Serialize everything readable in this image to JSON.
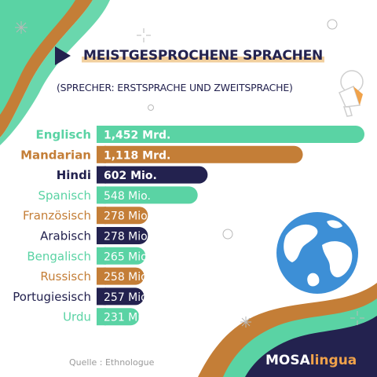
{
  "brand": {
    "part1": "MOSA",
    "part2": "lingua"
  },
  "chart_data": {
    "type": "bar",
    "orientation": "horizontal",
    "title": "MEISTGESPROCHENE SPRACHEN",
    "subtitle": "(SPRECHER: ERSTSPRACHE UND ZWEITSPRACHE)",
    "source": "Quelle : Ethnologue",
    "unit": "millions of speakers",
    "categories": [
      "Englisch",
      "Mandarian",
      "Hindi",
      "Spanisch",
      "Französisch",
      "Arabisch",
      "Bengalisch",
      "Russisch",
      "Portugiesisch",
      "Urdu"
    ],
    "values": [
      1452,
      1118,
      602,
      548,
      278,
      278,
      265,
      258,
      257,
      231
    ],
    "value_labels": [
      "1,452 Mrd.",
      "1,118 Mrd.",
      "602 Mio.",
      "548 Mio.",
      "278 Mio.",
      "278 Mio.",
      "265 Mio.",
      "258 Mio",
      "257 Mio.",
      "231 Mio."
    ],
    "colors": [
      "#5ad3a4",
      "#c47e37",
      "#23224f",
      "#5ad3a4",
      "#c47e37",
      "#23224f",
      "#5ad3a4",
      "#c47e37",
      "#23224f",
      "#5ad3a4"
    ],
    "bold_rows": [
      true,
      true,
      true,
      false,
      false,
      false,
      false,
      false,
      false,
      false
    ],
    "legend": "none",
    "grid": false
  }
}
